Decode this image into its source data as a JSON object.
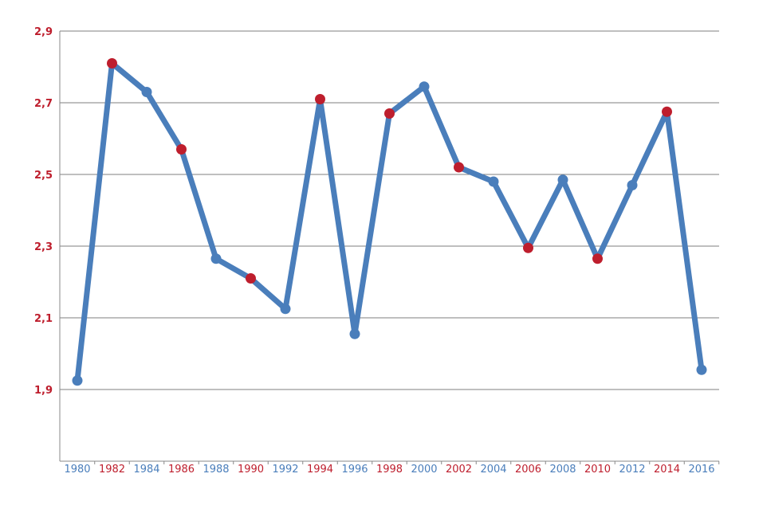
{
  "chart_data": {
    "type": "line",
    "title": "",
    "xlabel": "",
    "ylabel": "",
    "ylim": [
      1.7,
      2.9
    ],
    "yticks": [
      "1,9",
      "2,1",
      "2,3",
      "2,5",
      "2,7",
      "2,9"
    ],
    "ytick_values": [
      1.9,
      2.1,
      2.3,
      2.5,
      2.7,
      2.9
    ],
    "grid": true,
    "x": [
      "1980",
      "1982",
      "1984",
      "1986",
      "1988",
      "1990",
      "1992",
      "1994",
      "1996",
      "1998",
      "2000",
      "2002",
      "2004",
      "2006",
      "2008",
      "2010",
      "2012",
      "2014",
      "2016"
    ],
    "values": [
      1.925,
      2.81,
      2.73,
      2.57,
      2.265,
      2.21,
      2.125,
      2.71,
      2.055,
      2.67,
      2.745,
      2.52,
      2.48,
      2.295,
      2.485,
      2.265,
      2.47,
      2.675,
      1.955
    ],
    "highlighted_years": [
      "1982",
      "1986",
      "1990",
      "1994",
      "1998",
      "2002",
      "2006",
      "2010",
      "2014"
    ],
    "colors": {
      "line": "#4a7ebb",
      "marker": "#4a7ebb",
      "highlight": "#be1e2d",
      "axis_label": "#be1e2d",
      "x_label_normal": "#4a7ebb",
      "gridline": "#7f7f7f"
    }
  }
}
